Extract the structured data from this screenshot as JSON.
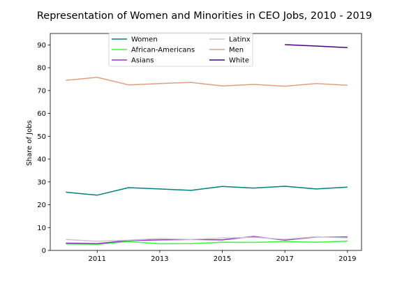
{
  "chart_data": {
    "type": "line",
    "title": "Representation of Women and Minorities in CEO Jobs, 2010 - 2019",
    "xlabel": "",
    "ylabel": "Share of Jobs",
    "xlim": [
      2009.5,
      2019.45
    ],
    "ylim": [
      0,
      95
    ],
    "xticks": [
      2011,
      2013,
      2015,
      2017,
      2019
    ],
    "yticks": [
      0,
      10,
      20,
      30,
      40,
      50,
      60,
      70,
      80,
      90
    ],
    "grid": false,
    "legend_position": "upper center",
    "series": [
      {
        "name": "Women",
        "color": "#008080",
        "x": [
          2010,
          2011,
          2012,
          2013,
          2014,
          2015,
          2016,
          2017,
          2018,
          2019
        ],
        "y": [
          25.5,
          24.2,
          27.5,
          26.9,
          26.3,
          28.0,
          27.3,
          28.1,
          26.9,
          27.7
        ]
      },
      {
        "name": "African-Americans",
        "color": "#33ff33",
        "x": [
          2010,
          2011,
          2012,
          2013,
          2014,
          2015,
          2016,
          2017,
          2018,
          2019
        ],
        "y": [
          2.8,
          2.7,
          3.9,
          2.9,
          3.0,
          3.6,
          3.5,
          3.9,
          3.6,
          4.1
        ]
      },
      {
        "name": "Asians",
        "color": "#9932cc",
        "x": [
          2010,
          2011,
          2012,
          2013,
          2014,
          2015,
          2016,
          2017,
          2018,
          2019
        ],
        "y": [
          3.2,
          3.0,
          4.3,
          4.6,
          4.8,
          4.6,
          6.1,
          4.5,
          5.9,
          5.9
        ]
      },
      {
        "name": "Latinx",
        "color": "#c8c8c8",
        "x": [
          2010,
          2011,
          2012,
          2013,
          2014,
          2015,
          2016,
          2017,
          2018,
          2019
        ],
        "y": [
          4.8,
          4.0,
          4.5,
          5.2,
          4.8,
          5.4,
          5.7,
          4.9,
          6.0,
          5.5
        ]
      },
      {
        "name": "Men",
        "color": "#e0a080",
        "x": [
          2010,
          2011,
          2012,
          2013,
          2014,
          2015,
          2016,
          2017,
          2018,
          2019
        ],
        "y": [
          74.5,
          75.8,
          72.5,
          73.1,
          73.6,
          72.0,
          72.7,
          71.9,
          73.1,
          72.3
        ]
      },
      {
        "name": "White",
        "color": "#4b0082",
        "x": [
          2017,
          2018,
          2019
        ],
        "y": [
          90.1,
          89.5,
          88.8
        ]
      }
    ]
  }
}
